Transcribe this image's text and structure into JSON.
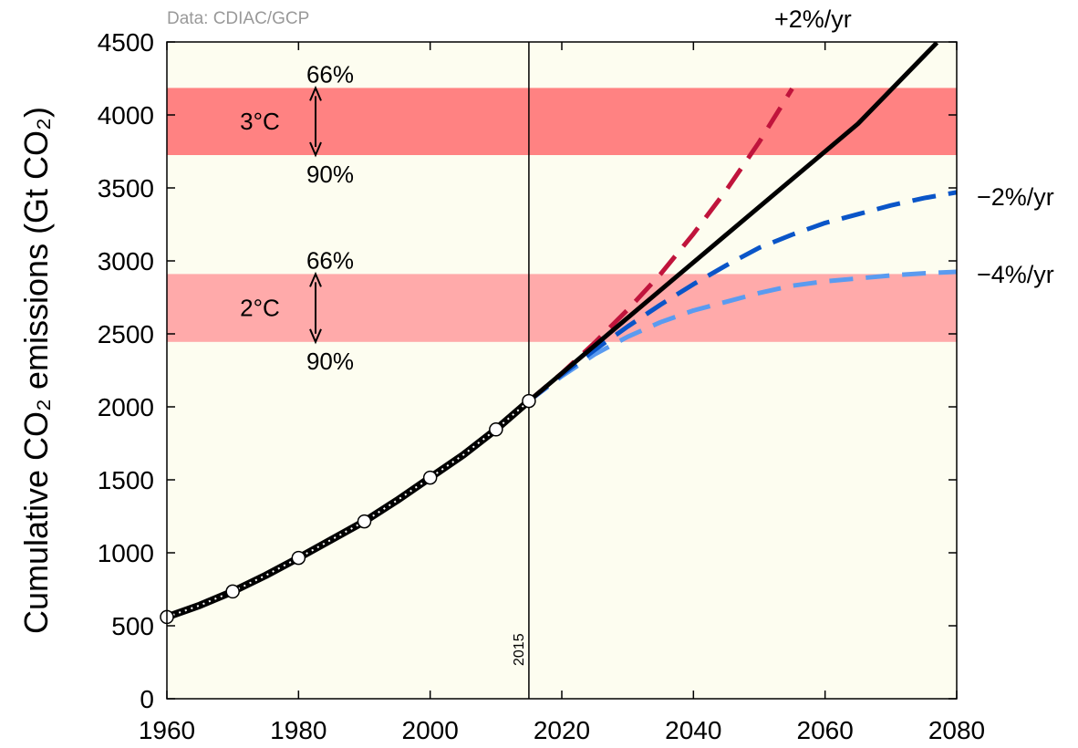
{
  "source_note": "Data: CDIAC/GCP",
  "chart_data": {
    "type": "line",
    "ylabel": "Cumulative CO₂ emissions (Gt CO₂)",
    "xlabel": "",
    "xlim": [
      1960,
      2080
    ],
    "ylim": [
      0,
      4500
    ],
    "x_ticks": [
      1960,
      1980,
      2000,
      2020,
      2040,
      2060,
      2080
    ],
    "y_ticks": [
      0,
      500,
      1000,
      1500,
      2000,
      2500,
      3000,
      3500,
      4000,
      4500
    ],
    "grid": false,
    "background": "#fdfdf0",
    "vertical_marker": {
      "x": 2015,
      "label": "2015"
    },
    "bands": [
      {
        "label": "3°C",
        "y_low": 3725,
        "y_high": 4185,
        "color": "#ff8282",
        "upper_label": "66%",
        "lower_label": "90%"
      },
      {
        "label": "2°C",
        "y_low": 2445,
        "y_high": 2910,
        "color": "#ffaaaa",
        "upper_label": "66%",
        "lower_label": "90%"
      }
    ],
    "historical": {
      "x": [
        1960,
        1965,
        1970,
        1975,
        1980,
        1985,
        1990,
        1995,
        2000,
        2005,
        2010,
        2015
      ],
      "y": [
        560,
        640,
        735,
        845,
        965,
        1090,
        1215,
        1360,
        1515,
        1670,
        1845,
        2040
      ],
      "markers_x": [
        1960,
        1970,
        1980,
        1990,
        2000,
        2010,
        2015
      ],
      "markers_y": [
        560,
        735,
        965,
        1215,
        1515,
        1845,
        2040
      ],
      "color": "#000000"
    },
    "series": [
      {
        "name": "+2%/yr",
        "style": "dashed",
        "color": "#c0143c",
        "x": [
          2015,
          2020,
          2025,
          2030,
          2035,
          2040,
          2045,
          2050,
          2055
        ],
        "y": [
          2040,
          2230,
          2440,
          2665,
          2910,
          3185,
          3485,
          3815,
          4180
        ]
      },
      {
        "name": "",
        "style": "solid",
        "color": "#000000",
        "x": [
          2015,
          2025,
          2035,
          2045,
          2055,
          2065,
          2077
        ],
        "y": [
          2040,
          2420,
          2800,
          3180,
          3560,
          3940,
          4495
        ]
      },
      {
        "name": "−2%/yr",
        "style": "dashed",
        "color": "#0a55c8",
        "x": [
          2015,
          2020,
          2025,
          2030,
          2035,
          2040,
          2045,
          2050,
          2055,
          2060,
          2065,
          2070,
          2075,
          2080
        ],
        "y": [
          2040,
          2220,
          2390,
          2550,
          2700,
          2840,
          2970,
          3090,
          3180,
          3260,
          3320,
          3380,
          3430,
          3470
        ]
      },
      {
        "name": "−4%/yr",
        "style": "dashed",
        "color": "#5a9bf0",
        "x": [
          2015,
          2020,
          2025,
          2030,
          2035,
          2040,
          2045,
          2050,
          2055,
          2060,
          2065,
          2070,
          2075,
          2080
        ],
        "y": [
          2040,
          2210,
          2360,
          2480,
          2580,
          2660,
          2720,
          2780,
          2830,
          2860,
          2880,
          2900,
          2915,
          2925
        ]
      }
    ]
  }
}
